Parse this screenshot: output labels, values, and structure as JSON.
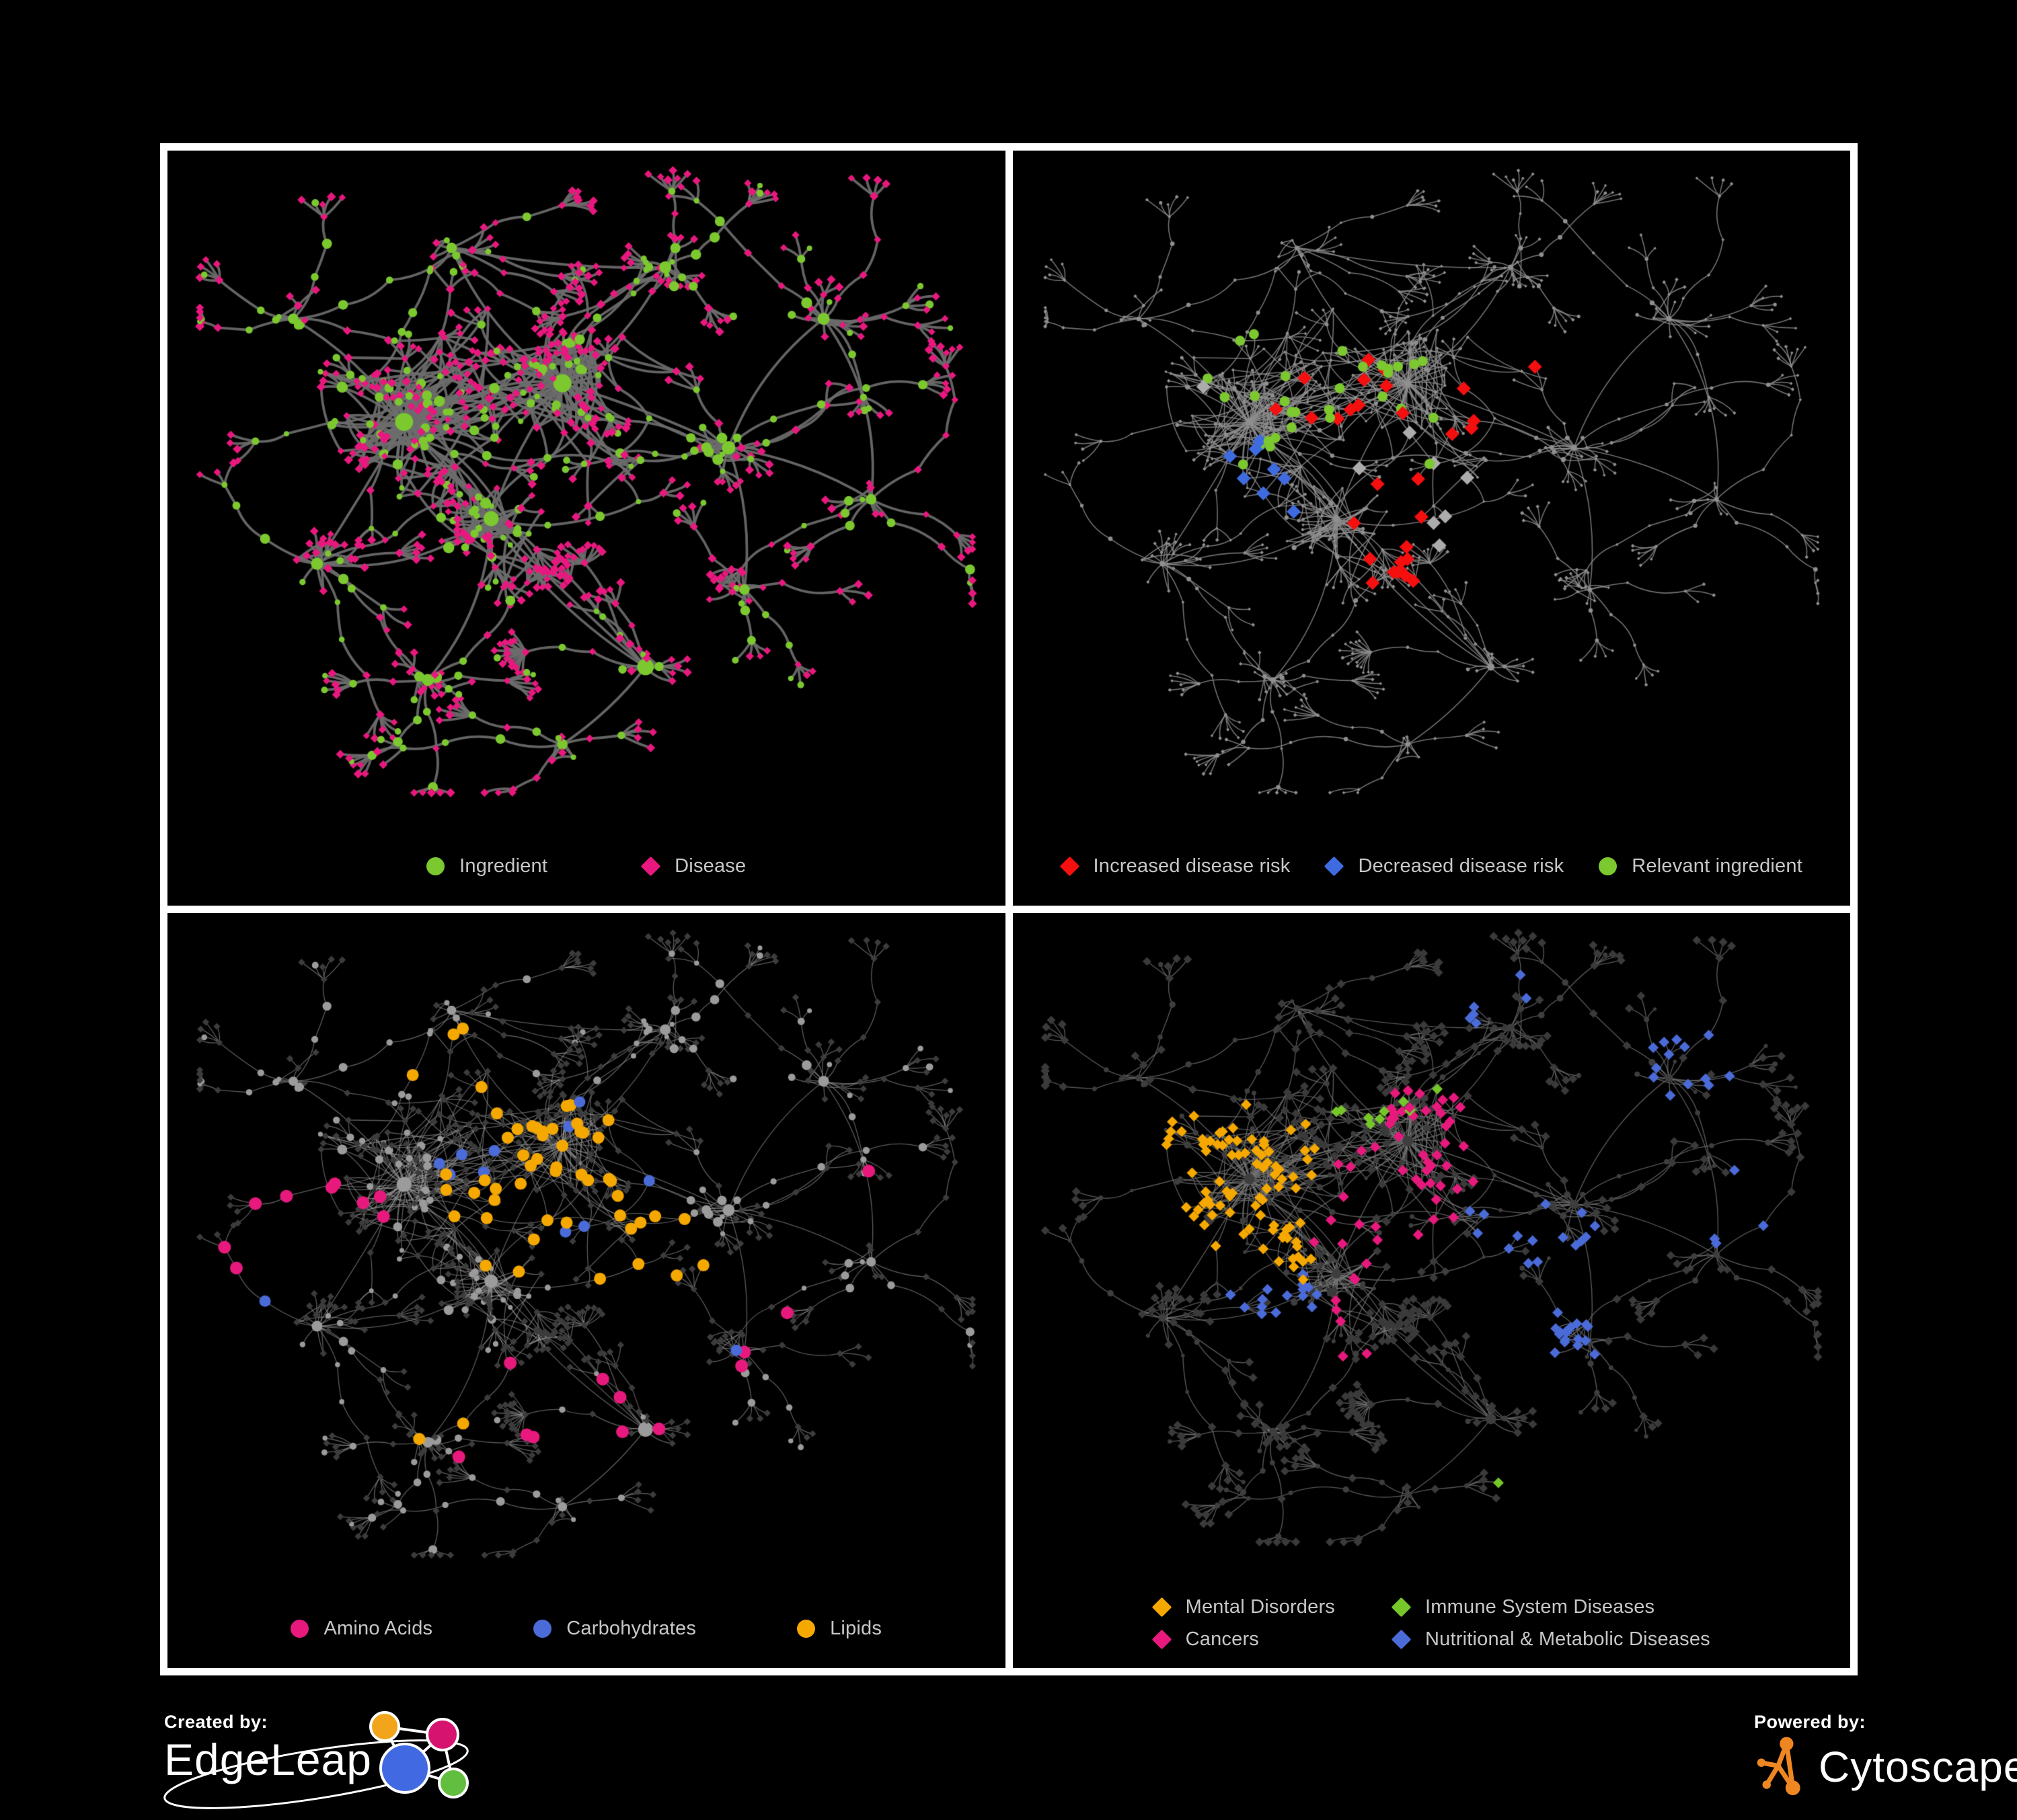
{
  "page": {
    "background": "#000000",
    "frame_color": "#ffffff"
  },
  "footer": {
    "created_by_label": "Created by:",
    "edgeleap_brand": "EdgeLeap",
    "powered_by_label": "Powered by:",
    "cytoscape_brand": "Cytoscape",
    "cytoscape_logo_color": "#ee8722",
    "edgeleap_logo_colors": {
      "orange": "#f2a51a",
      "pink": "#d6136f",
      "blue": "#4169e1",
      "green": "#62be3e"
    }
  },
  "chart_data": {
    "type": "network",
    "description": "Four views of the same ingredient-disease association network (ingredients drawn as circles, diseases as diamonds) with different color mappings per panel.",
    "layout": {
      "seed": 1337,
      "squash": 0.88,
      "clusters": [
        {
          "x": 0.27,
          "y": 0.4,
          "r": 0.105,
          "branches": 9,
          "satellites": 46,
          "hub": 12,
          "dense": true
        },
        {
          "x": 0.47,
          "y": 0.34,
          "r": 0.09,
          "branches": 8,
          "satellites": 40,
          "hub": 12,
          "dense": true
        },
        {
          "x": 0.38,
          "y": 0.55,
          "r": 0.075,
          "branches": 7,
          "satellites": 28,
          "hub": 10,
          "dense": true
        },
        {
          "x": 0.575,
          "y": 0.78,
          "r": 0.045,
          "branches": 5,
          "satellites": 8,
          "hub": 11,
          "fan": true
        },
        {
          "x": 0.68,
          "y": 0.44,
          "r": 0.05,
          "branches": 6,
          "satellites": 12,
          "hub": 9,
          "dense": true
        },
        {
          "x": 0.16,
          "y": 0.62,
          "r": 0.05,
          "branches": 6,
          "satellites": 10,
          "hub": 8
        },
        {
          "x": 0.6,
          "y": 0.16,
          "r": 0.045,
          "branches": 5,
          "satellites": 8,
          "hub": 8
        },
        {
          "x": 0.8,
          "y": 0.24,
          "r": 0.05,
          "branches": 6,
          "satellites": 9,
          "hub": 8
        },
        {
          "x": 0.86,
          "y": 0.52,
          "r": 0.04,
          "branches": 5,
          "satellites": 6,
          "hub": 7
        },
        {
          "x": 0.33,
          "y": 0.13,
          "r": 0.04,
          "branches": 5,
          "satellites": 6,
          "hub": 7
        },
        {
          "x": 0.13,
          "y": 0.24,
          "r": 0.04,
          "branches": 5,
          "satellites": 6,
          "hub": 7
        },
        {
          "x": 0.3,
          "y": 0.8,
          "r": 0.045,
          "branches": 5,
          "satellites": 7,
          "hub": 8
        },
        {
          "x": 0.7,
          "y": 0.66,
          "r": 0.04,
          "branches": 4,
          "satellites": 6,
          "hub": 7
        },
        {
          "x": 0.47,
          "y": 0.9,
          "r": 0.035,
          "branches": 4,
          "satellites": 5,
          "hub": 7
        }
      ],
      "links": [
        [
          0,
          1
        ],
        [
          0,
          2
        ],
        [
          1,
          2
        ],
        [
          2,
          3
        ],
        [
          1,
          4
        ],
        [
          0,
          5
        ],
        [
          1,
          6
        ],
        [
          4,
          7
        ],
        [
          7,
          8
        ],
        [
          1,
          9
        ],
        [
          0,
          10
        ],
        [
          2,
          11
        ],
        [
          4,
          12
        ],
        [
          3,
          13
        ],
        [
          0,
          3
        ],
        [
          4,
          8
        ],
        [
          2,
          5
        ],
        [
          6,
          9
        ]
      ],
      "extra_edges": 150,
      "extra_edge_max_dist": 0.13
    },
    "panels": [
      {
        "id": "ingredient-disease",
        "legend": {
          "rows": 1,
          "gap": 140,
          "items": [
            {
              "label": "Ingredient",
              "shape": "circle",
              "color": "#7cc82f"
            },
            {
              "label": "Disease",
              "shape": "diamond",
              "color": "#e8187f"
            }
          ]
        },
        "style": {
          "legend_space": 130,
          "edge": {
            "color": "#6d6d6d",
            "width": 3.8,
            "alpha": 0.92
          },
          "base": {
            "ingredient": {
              "shape": "circle",
              "color": "#7cc82f",
              "scale": 1.12,
              "max": 15
            },
            "disease": {
              "shape": "diamond",
              "color": "#e8187f",
              "scale": 1.15,
              "max": 8
            }
          },
          "highlights": []
        }
      },
      {
        "id": "disease-risk",
        "legend": {
          "rows": 1,
          "gap": 52,
          "items": [
            {
              "label": "Increased disease risk",
              "shape": "diamond",
              "color": "#f50f0f"
            },
            {
              "label": "Decreased disease risk",
              "shape": "diamond",
              "color": "#3f6be0"
            },
            {
              "label": "Relevant ingredient",
              "shape": "circle",
              "color": "#7cc82f"
            }
          ]
        },
        "style": {
          "legend_space": 130,
          "edge": {
            "color": "#8d8d8d",
            "width": 1.6,
            "alpha": 0.8
          },
          "base": {
            "ingredient": {
              "shape": "circle",
              "color": "#8f8f8f",
              "scale": 0.5,
              "max": 5.5
            },
            "disease": {
              "shape": "diamond",
              "color": "#8f8f8f",
              "scale": 0.5,
              "max": 5
            }
          },
          "highlights": [
            {
              "on": "disease",
              "shape": "diamond",
              "color": "#acacac",
              "size": 10.5,
              "count": 8,
              "seed": 21,
              "hotspots": [
                [
                  0.24,
                  0.31,
                  0.1
                ],
                [
                  0.47,
                  0.47,
                  0.1
                ],
                [
                  0.58,
                  0.6,
                  0.07
                ],
                [
                  0.36,
                  0.7,
                  0.06
                ]
              ]
            },
            {
              "on": "disease",
              "shape": "diamond",
              "color": "#3f6be0",
              "size": 10.5,
              "count": 9,
              "seed": 22,
              "hotspots": [
                [
                  0.26,
                  0.42,
                  0.055
                ],
                [
                  0.3,
                  0.52,
                  0.05
                ],
                [
                  0.87,
                  0.3,
                  0.045
                ]
              ]
            },
            {
              "on": "disease",
              "shape": "diamond",
              "color": "#f50f0f",
              "size": 10.5,
              "count": 30,
              "seed": 23,
              "hotspots": [
                [
                  0.33,
                  0.34,
                  0.16
                ],
                [
                  0.5,
                  0.42,
                  0.14
                ],
                [
                  0.6,
                  0.72,
                  0.09
                ],
                [
                  0.44,
                  0.62,
                  0.08
                ],
                [
                  0.66,
                  0.3,
                  0.08
                ]
              ]
            },
            {
              "on": "ingredient",
              "shape": "circle",
              "color": "#7cc82f",
              "size": 7.5,
              "count": 30,
              "seed": 24,
              "hotspots": [
                [
                  0.44,
                  0.36,
                  0.14
                ],
                [
                  0.28,
                  0.38,
                  0.12
                ],
                [
                  0.55,
                  0.62,
                  0.1
                ],
                [
                  0.22,
                  0.16,
                  0.07
                ],
                [
                  0.86,
                  0.42,
                  0.04
                ]
              ]
            }
          ]
        }
      },
      {
        "id": "compound-classes",
        "legend": {
          "rows": 1,
          "gap": 150,
          "items": [
            {
              "label": "Amino Acids",
              "shape": "circle",
              "color": "#e8197d"
            },
            {
              "label": "Carbohydrates",
              "shape": "circle",
              "color": "#4a6bd8"
            },
            {
              "label": "Lipids",
              "shape": "circle",
              "color": "#f5a800"
            }
          ]
        },
        "style": {
          "legend_space": 130,
          "edge": {
            "color": "#979797",
            "width": 1.3,
            "alpha": 0.6
          },
          "base": {
            "ingredient": {
              "shape": "circle",
              "color": "#9b9b9b",
              "scale": 1.0,
              "max": 11
            },
            "disease": {
              "shape": "diamond",
              "color": "#3c3c3c",
              "size": 5.2
            }
          },
          "highlights": [
            {
              "on": "ingredient",
              "shape": "circle",
              "color": "#f5a800",
              "size": 9,
              "count": 55,
              "seed": 31,
              "hotspots": [
                [
                  0.47,
                  0.33,
                  0.1
                ],
                [
                  0.4,
                  0.44,
                  0.08
                ],
                [
                  0.52,
                  0.56,
                  0.07
                ],
                [
                  0.3,
                  0.76,
                  0.05
                ],
                [
                  0.63,
                  0.52,
                  0.07
                ],
                [
                  0.35,
                  0.2,
                  0.06
                ]
              ]
            },
            {
              "on": "ingredient",
              "shape": "circle",
              "color": "#4a6bd8",
              "size": 8.5,
              "count": 12,
              "seed": 32,
              "hotspots": [
                [
                  0.45,
                  0.37,
                  0.09
                ],
                [
                  0.09,
                  0.33,
                  0.04
                ],
                [
                  0.6,
                  0.62,
                  0.06
                ],
                [
                  0.13,
                  0.55,
                  0.04
                ]
              ]
            },
            {
              "on": "ingredient",
              "shape": "circle",
              "color": "#e8197d",
              "size": 9.5,
              "count": 21,
              "seed": 33,
              "hotspots": [
                [
                  0.13,
                  0.45,
                  0.12
                ],
                [
                  0.45,
                  0.78,
                  0.12
                ],
                [
                  0.68,
                  0.62,
                  0.1
                ],
                [
                  0.58,
                  0.06,
                  0.04
                ],
                [
                  0.9,
                  0.38,
                  0.05
                ],
                [
                  0.07,
                  0.7,
                  0.06
                ]
              ]
            }
          ]
        }
      },
      {
        "id": "disease-categories",
        "legend": {
          "rows": 2,
          "gap": 85,
          "items": [
            {
              "label": "Mental Disorders",
              "shape": "diamond",
              "color": "#f5a800"
            },
            {
              "label": "Immune System Diseases",
              "shape": "diamond",
              "color": "#76c62a"
            },
            {
              "label": "Cancers",
              "shape": "diamond",
              "color": "#e8197d"
            },
            {
              "label": "Nutritional & Metabolic Diseases",
              "shape": "diamond",
              "color": "#4a6bd8"
            }
          ]
        },
        "style": {
          "legend_space": 150,
          "edge": {
            "color": "#747474",
            "width": 1.4,
            "alpha": 0.75
          },
          "base": {
            "ingredient": {
              "shape": "circle",
              "color": "#3e3e3e",
              "scale": 0.72,
              "max": 8
            },
            "disease": {
              "shape": "diamond",
              "color": "#3a3a3a",
              "size": 6.5
            }
          },
          "highlights": [
            {
              "on": "disease",
              "shape": "diamond",
              "color": "#76c62a",
              "size": 8,
              "count": 11,
              "seed": 41,
              "hotspots": [
                [
                  0.44,
                  0.28,
                  0.15
                ],
                [
                  0.28,
                  0.82,
                  0.08
                ],
                [
                  0.6,
                  0.88,
                  0.06
                ]
              ]
            },
            {
              "on": "disease",
              "shape": "diamond",
              "color": "#4a6bd8",
              "size": 8,
              "count": 70,
              "seed": 42,
              "hotspots": [
                [
                  0.62,
                  0.5,
                  0.07
                ],
                [
                  0.8,
                  0.22,
                  0.07
                ],
                [
                  0.88,
                  0.45,
                  0.05
                ],
                [
                  0.57,
                  0.12,
                  0.05
                ],
                [
                  0.7,
                  0.7,
                  0.06
                ],
                [
                  0.3,
                  0.6,
                  0.05
                ],
                [
                  0.92,
                  0.7,
                  0.05
                ],
                [
                  0.22,
                  0.12,
                  0.05
                ]
              ]
            },
            {
              "on": "disease",
              "shape": "diamond",
              "color": "#e8197d",
              "size": 8,
              "count": 58,
              "seed": 43,
              "hotspots": [
                [
                  0.47,
                  0.4,
                  0.08
                ],
                [
                  0.41,
                  0.52,
                  0.07
                ],
                [
                  0.52,
                  0.3,
                  0.06
                ],
                [
                  0.86,
                  0.3,
                  0.045
                ],
                [
                  0.37,
                  0.67,
                  0.05
                ]
              ]
            },
            {
              "on": "disease",
              "shape": "diamond",
              "color": "#f5a800",
              "size": 8,
              "count": 85,
              "seed": 44,
              "hotspots": [
                [
                  0.26,
                  0.4,
                  0.085
                ],
                [
                  0.17,
                  0.33,
                  0.07
                ],
                [
                  0.3,
                  0.52,
                  0.05
                ]
              ]
            }
          ]
        }
      }
    ]
  }
}
